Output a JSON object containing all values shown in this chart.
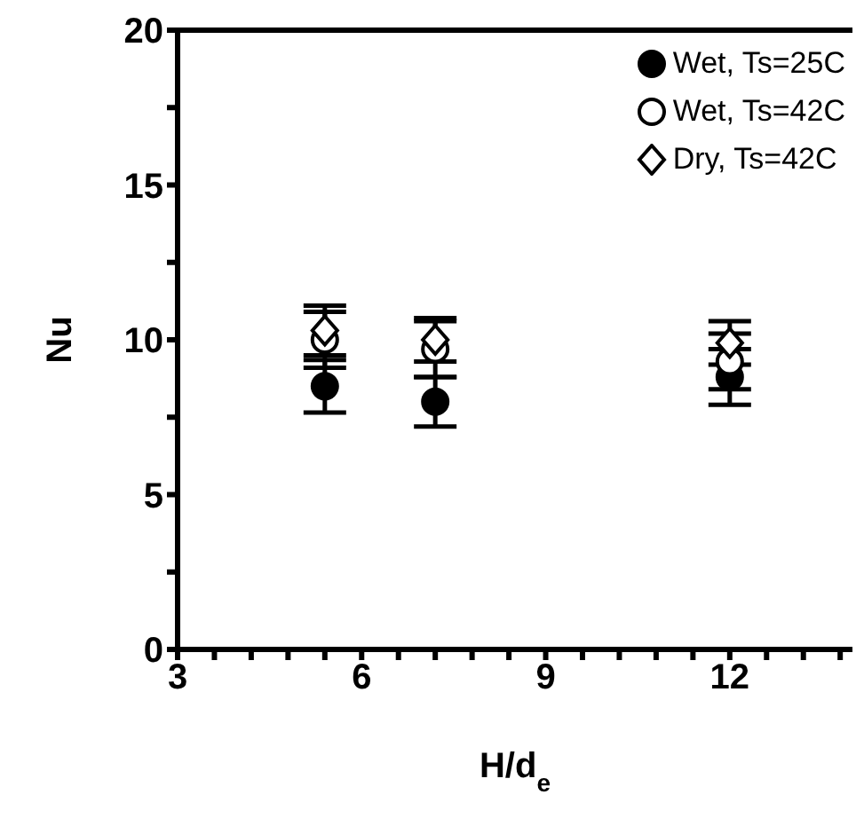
{
  "chart_data": {
    "type": "scatter",
    "xlabel": "H/d$_{e}$",
    "ylabel": "Nu",
    "xlim": [
      3,
      14
    ],
    "xticks": [
      3,
      {
        "value": 3.6,
        "label": null
      },
      {
        "value": 4.2,
        "label": null
      },
      {
        "value": 4.8,
        "label": null
      },
      {
        "value": 5.4,
        "label": null
      },
      6,
      {
        "value": 6.6,
        "label": null
      },
      {
        "value": 7.2,
        "label": null
      },
      {
        "value": 7.8,
        "label": null
      },
      {
        "value": 8.4,
        "label": null
      },
      9,
      {
        "value": 9.6,
        "label": null
      },
      {
        "value": 10.2,
        "label": null
      },
      {
        "value": 10.8,
        "label": null
      },
      {
        "value": 11.4,
        "label": null
      },
      12,
      {
        "value": 12.6,
        "label": null
      },
      {
        "value": 13.2,
        "label": null
      },
      {
        "value": 13.8,
        "label": null
      }
    ],
    "ylim": [
      0,
      20
    ],
    "yticks": [
      0,
      {
        "value": 2.5,
        "label": null
      },
      5,
      {
        "value": 7.5,
        "label": null
      },
      10,
      {
        "value": 12.5,
        "label": null
      },
      15,
      {
        "value": 17.5,
        "label": null
      },
      20
    ],
    "x": [
      5.4,
      7.2,
      12
    ],
    "legend": "top right",
    "grid": false,
    "series": [
      {
        "name": "Wet, Ts=25C",
        "color": "#000000",
        "marker": "circle",
        "values": [
          8.5,
          8.0,
          8.8
        ],
        "errors": [
          0.85,
          0.8,
          0.9
        ]
      },
      {
        "name": "Wet, Ts=42C",
        "color": "#ffffff",
        "marker": "circle",
        "values": [
          10.0,
          9.7,
          9.3
        ],
        "errors": [
          0.9,
          0.9,
          0.9
        ]
      },
      {
        "name": "Dry, Ts=42C",
        "color": "#ffffff",
        "marker": "diamond",
        "values": [
          10.3,
          10.0,
          9.9
        ],
        "errors": [
          0.8,
          0.7,
          0.7
        ]
      }
    ]
  }
}
